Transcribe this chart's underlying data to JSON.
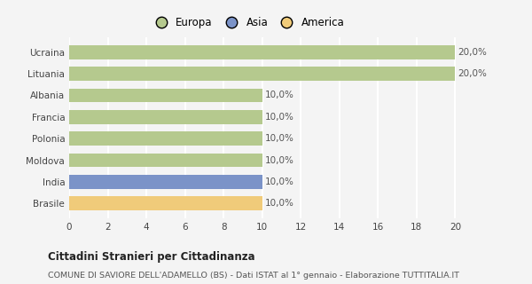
{
  "categories": [
    "Ucraina",
    "Lituania",
    "Albania",
    "Francia",
    "Polonia",
    "Moldova",
    "India",
    "Brasile"
  ],
  "values": [
    20,
    20,
    10,
    10,
    10,
    10,
    10,
    10
  ],
  "bar_colors": [
    "#b5c98e",
    "#b5c98e",
    "#b5c98e",
    "#b5c98e",
    "#b5c98e",
    "#b5c98e",
    "#7b93c8",
    "#f0cb7a"
  ],
  "labels": [
    "20,0%",
    "20,0%",
    "10,0%",
    "10,0%",
    "10,0%",
    "10,0%",
    "10,0%",
    "10,0%"
  ],
  "legend_labels": [
    "Europa",
    "Asia",
    "America"
  ],
  "legend_colors": [
    "#b5c98e",
    "#7b93c8",
    "#f0cb7a"
  ],
  "title": "Cittadini Stranieri per Cittadinanza",
  "subtitle": "COMUNE DI SAVIORE DELL'ADAMELLO (BS) - Dati ISTAT al 1° gennaio - Elaborazione TUTTITALIA.IT",
  "xlim": [
    0,
    21.5
  ],
  "xticks": [
    0,
    2,
    4,
    6,
    8,
    10,
    12,
    14,
    16,
    18,
    20
  ],
  "background_color": "#f4f4f4",
  "grid_color": "#ffffff",
  "label_fontsize": 7.5,
  "tick_fontsize": 7.5,
  "bar_height": 0.65
}
